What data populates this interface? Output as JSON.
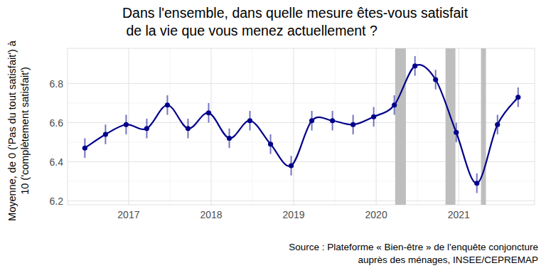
{
  "chart_data": {
    "type": "line",
    "title": "Dans l'ensemble, dans quelle mesure êtes-vous satisfait\n de la vie que vous menez actuellement ?",
    "y_label": "Moyenne, de 0 ('Pas du tout satisfait') à\n10 ('complètement satisfait')",
    "source": "Source : Plateforme « Bien-être » de l'enquête conjoncture\nauprès des ménages, INSEE/CEPREMAP",
    "x": [
      2016.47,
      2016.72,
      2016.97,
      2017.22,
      2017.47,
      2017.72,
      2017.97,
      2018.22,
      2018.47,
      2018.72,
      2018.97,
      2019.22,
      2019.47,
      2019.72,
      2019.97,
      2020.22,
      2020.47,
      2020.72,
      2020.97,
      2021.22,
      2021.47,
      2021.72
    ],
    "values": [
      6.47,
      6.54,
      6.59,
      6.57,
      6.69,
      6.57,
      6.65,
      6.52,
      6.61,
      6.49,
      6.38,
      6.61,
      6.61,
      6.59,
      6.63,
      6.69,
      6.89,
      6.82,
      6.55,
      6.29,
      6.59,
      6.73
    ],
    "errors": [
      0.05,
      0.05,
      0.05,
      0.05,
      0.05,
      0.05,
      0.05,
      0.05,
      0.05,
      0.05,
      0.05,
      0.05,
      0.05,
      0.05,
      0.05,
      0.05,
      0.05,
      0.05,
      0.05,
      0.05,
      0.05,
      0.05
    ],
    "shaded_periods": [
      [
        2020.23,
        2020.36
      ],
      [
        2020.84,
        2020.96
      ],
      [
        2021.27,
        2021.33
      ]
    ],
    "color": "#00008b",
    "marker": "circle",
    "xlim": [
      2016.26,
      2021.92
    ],
    "ylim": [
      6.18,
      6.98
    ],
    "xticks": [
      2017,
      2018,
      2019,
      2020,
      2021
    ],
    "yticks": [
      6.2,
      6.4,
      6.6,
      6.8
    ],
    "grid": true
  }
}
